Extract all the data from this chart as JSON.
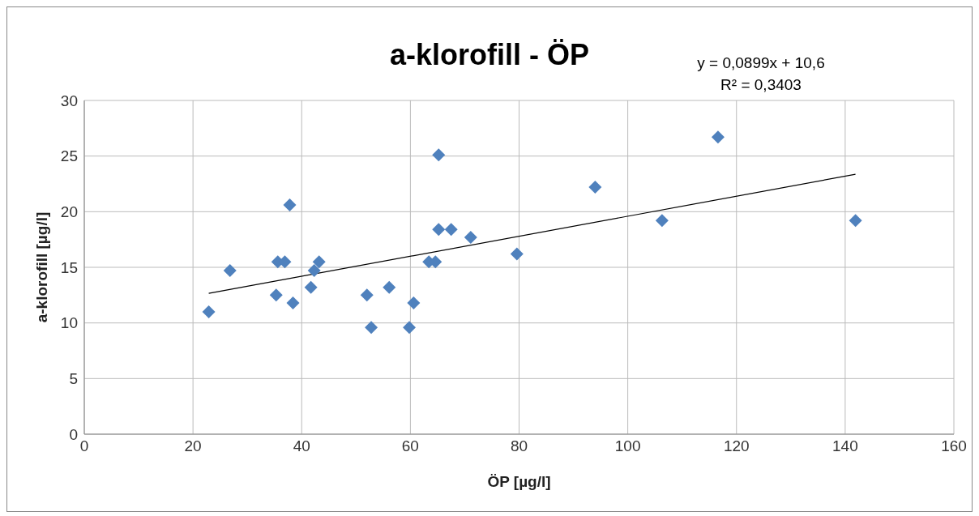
{
  "chart_data": {
    "type": "scatter",
    "title": "a-klorofill - ÖP",
    "xlabel": "ÖP [µg/l]",
    "ylabel": "a-klorofill [µg/l]",
    "annotations": [
      "y = 0,0899x + 10,6",
      "R² = 0,3403"
    ],
    "series": [
      {
        "color": "#4f81bd",
        "marker": "diamond",
        "x": [
          22.9,
          26.8,
          35.3,
          35.6,
          36.9,
          37.8,
          38.4,
          41.7,
          42.3,
          43.2,
          52.0,
          52.8,
          56.1,
          59.8,
          60.6,
          63.4,
          64.6,
          65.2,
          65.2,
          67.5,
          71.1,
          79.6,
          94.0,
          106.3,
          116.6,
          141.9
        ],
        "values": [
          11.0,
          14.7,
          12.5,
          15.5,
          15.5,
          20.6,
          11.8,
          13.2,
          14.7,
          15.5,
          12.5,
          9.6,
          13.2,
          9.6,
          11.8,
          15.5,
          15.5,
          25.1,
          18.4,
          18.4,
          17.7,
          16.2,
          22.2,
          19.2,
          26.7,
          19.2
        ]
      },
      {
        "type": "line",
        "color": "#000000",
        "marker": "none",
        "line_style": "solid",
        "x": [
          22.9,
          141.9
        ],
        "values": [
          12.66,
          23.36
        ]
      }
    ],
    "xlim": [
      0,
      160
    ],
    "xticks": [
      0,
      20,
      40,
      60,
      80,
      100,
      120,
      140,
      160
    ],
    "ylim": [
      0,
      30
    ],
    "yticks": [
      0,
      5,
      10,
      15,
      20,
      25,
      30
    ],
    "grid": true
  }
}
